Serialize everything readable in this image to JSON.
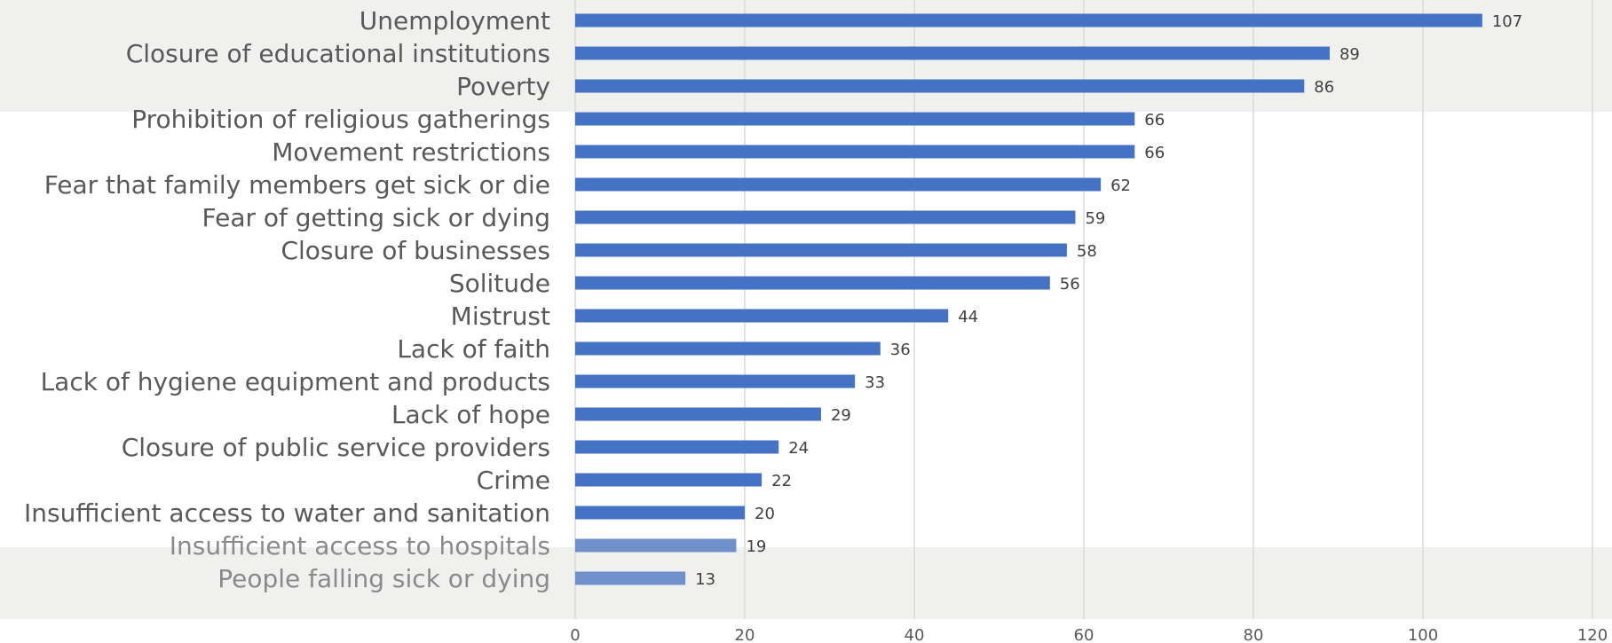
{
  "chart_data": {
    "type": "bar",
    "orientation": "horizontal",
    "title": "",
    "xlabel": "",
    "ylabel": "",
    "categories": [
      "Unemployment",
      "Closure of educational institutions",
      "Poverty",
      "Prohibition of religious gatherings",
      "Movement restrictions",
      "Fear that family members get sick or die",
      "Fear of getting sick or dying",
      "Closure of businesses",
      "Solitude",
      "Mistrust",
      "Lack of faith",
      "Lack of hygiene equipment and products",
      "Lack of hope",
      "Closure of public service providers",
      "Crime",
      "Insufficient access to water and sanitation",
      "Insufficient access to hospitals",
      "People falling sick or dying"
    ],
    "values": [
      107,
      89,
      86,
      66,
      66,
      62,
      59,
      58,
      56,
      44,
      36,
      33,
      29,
      24,
      22,
      20,
      19,
      13
    ],
    "xlim": [
      0,
      120
    ],
    "xticks": [
      0,
      20,
      40,
      60,
      80,
      100,
      120
    ],
    "grid": true,
    "data_labels": true,
    "legend": "none",
    "colors": {
      "bar": "#4472c4",
      "bar_faded": "#7090cc",
      "grid": "#d9d9d9",
      "highlight_band": "#f0f0ef",
      "label": "#595959",
      "label_faded": "#8a8a8a",
      "value_label": "#404040"
    }
  }
}
